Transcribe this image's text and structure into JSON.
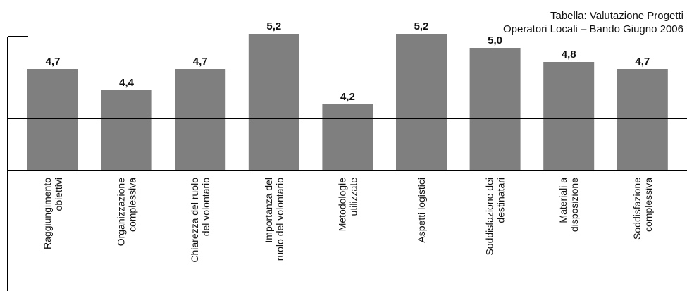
{
  "colors": {
    "bar": "#7f7f7f",
    "axis": "#000000",
    "text": "#111111",
    "background": "#ffffff"
  },
  "chart_data": {
    "type": "bar",
    "title": "Tabella: Valutazione Progetti",
    "subtitle": "Operatori Locali – Bando Giugno 2006",
    "xlabel": "",
    "ylabel": "",
    "ylim": [
      3.5,
      5.5
    ],
    "reference_line": 4,
    "grid": false,
    "legend": "none",
    "categories": [
      [
        "Raggiungimento",
        "obiettivi"
      ],
      [
        "Organizzazione",
        "complessiva"
      ],
      [
        "Chiarezza del ruolo",
        "del volontario"
      ],
      [
        "Importanza del",
        "ruolo del volontario"
      ],
      [
        "Metodologie",
        "utilizzate"
      ],
      [
        "Aspetti logistici"
      ],
      [
        "Soddisfazione dei",
        "destinatari"
      ],
      [
        "Materiali a",
        "disposizione"
      ],
      [
        "Soddisfazione",
        "complessiva"
      ]
    ],
    "values": [
      4.7,
      4.4,
      4.7,
      5.2,
      4.2,
      5.2,
      5.0,
      4.8,
      4.7
    ],
    "value_labels": [
      "4,7",
      "4,4",
      "4,7",
      "5,2",
      "4,2",
      "5,2",
      "5,0",
      "4,8",
      "4,7"
    ]
  }
}
